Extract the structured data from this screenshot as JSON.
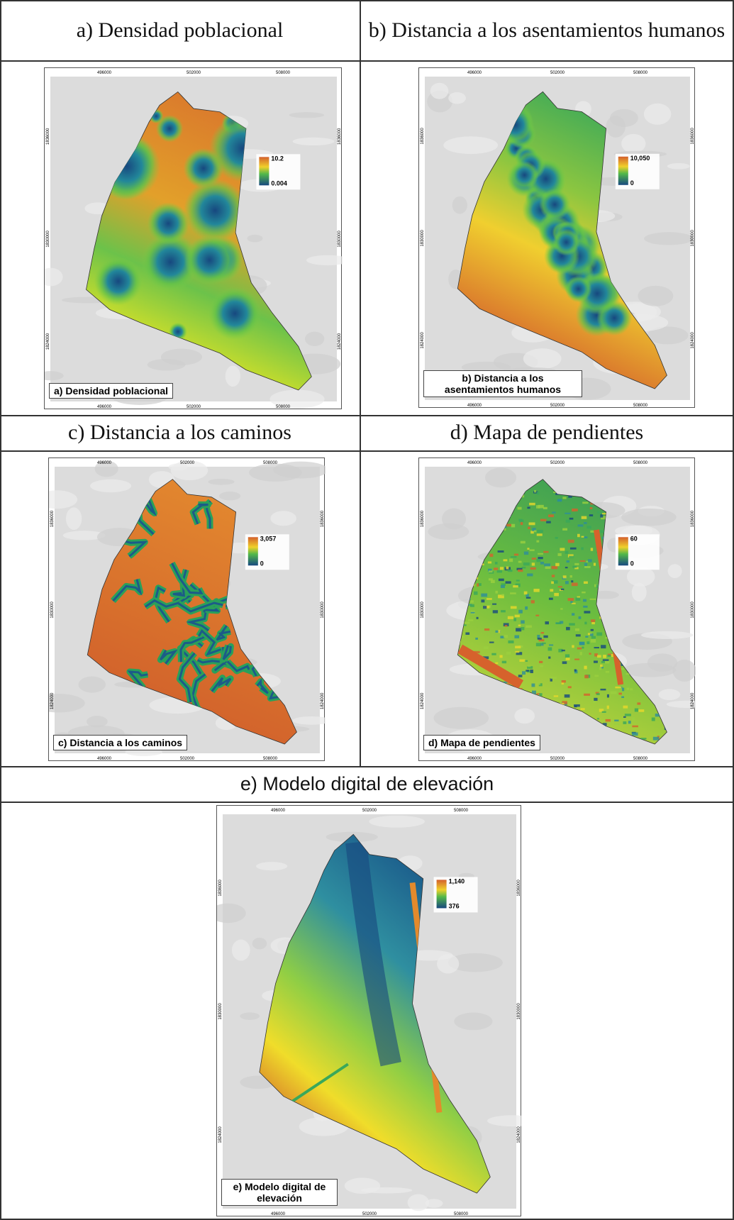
{
  "panels": [
    {
      "header": "a) Densidad poblacional",
      "map_label": "a) Densidad poblacional",
      "legend_max": "10.2",
      "legend_min": "0.004"
    },
    {
      "header": "b) Distancia a los asentamientos humanos",
      "map_label": "b) Distancia a los asentamientos humanos",
      "legend_max": "10,050",
      "legend_min": "0"
    },
    {
      "header": "c) Distancia a los caminos",
      "map_label": "c) Distancia a los caminos",
      "legend_max": "3,057",
      "legend_min": "0"
    },
    {
      "header": "d) Mapa de pendientes",
      "map_label": "d) Mapa de pendientes",
      "legend_max": "60",
      "legend_min": "0"
    },
    {
      "header": "e) Modelo digital de elevación",
      "map_label": "e) Modelo digital de elevación",
      "legend_max": "1,140",
      "legend_min": "376"
    }
  ],
  "axis_labels": {
    "x": [
      "496000",
      "502000",
      "508000"
    ],
    "y": [
      "1836000",
      "1830000",
      "1824000"
    ]
  }
}
